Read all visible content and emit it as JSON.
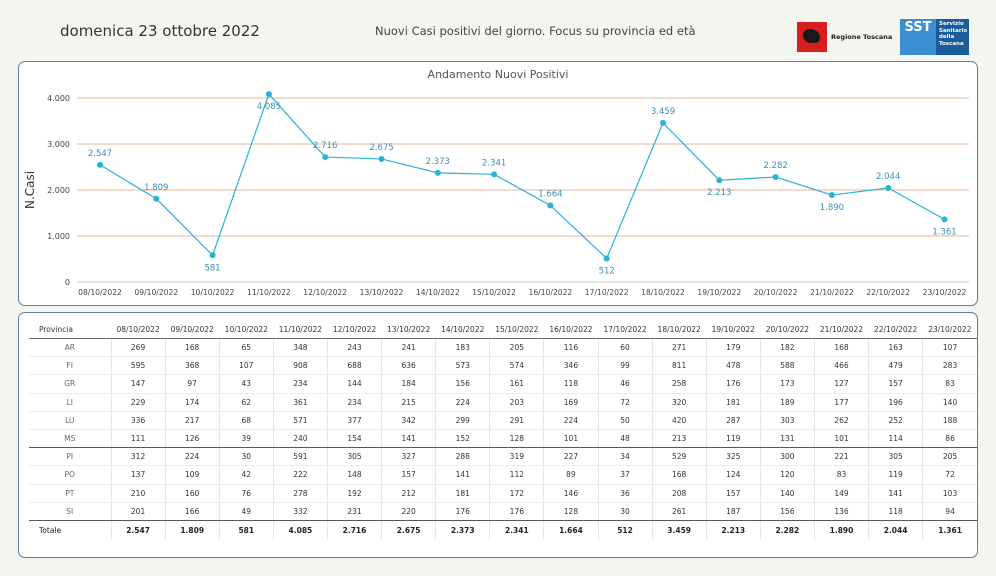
{
  "header": {
    "date": "domenica 23 ottobre 2022",
    "subtitle": "Nuovi Casi positivi del giorno. Focus su provincia ed età",
    "logo_regione": "Regione Toscana",
    "logo_sst_abbr": "SST",
    "logo_sst_lines": [
      "Servizio",
      "Sanitario",
      "della",
      "Toscana"
    ]
  },
  "colors": {
    "line": "#29b2d6",
    "label": "#3a8fb8",
    "grid": "#e6b39c",
    "border": "#5b7f98"
  },
  "chart_data": {
    "type": "line",
    "title": "Andamento Nuovi Positivi",
    "ylabel": "N.Casi",
    "xlabel": "",
    "ylim": [
      0,
      4000
    ],
    "yticks": [
      "0",
      "1.000",
      "2.000",
      "3.000",
      "4.000"
    ],
    "categories": [
      "08/10/2022",
      "09/10/2022",
      "10/10/2022",
      "11/10/2022",
      "12/10/2022",
      "13/10/2022",
      "14/10/2022",
      "15/10/2022",
      "16/10/2022",
      "17/10/2022",
      "18/10/2022",
      "19/10/2022",
      "20/10/2022",
      "21/10/2022",
      "22/10/2022",
      "23/10/2022"
    ],
    "values": [
      2547,
      1809,
      581,
      4085,
      2716,
      2675,
      2373,
      2341,
      1664,
      512,
      3459,
      2213,
      2282,
      1890,
      2044,
      1361
    ],
    "data_labels": [
      "2.547",
      "1.809",
      "581",
      "4.085",
      "2.716",
      "2.675",
      "2.373",
      "2.341",
      "1.664",
      "512",
      "3.459",
      "2.213",
      "2.282",
      "1.890",
      "2.044",
      "1.361"
    ],
    "label_positions": [
      "above",
      "above",
      "below",
      "below",
      "above",
      "above",
      "above",
      "above",
      "above",
      "below",
      "above",
      "below",
      "above",
      "below",
      "above",
      "below"
    ],
    "grid": true
  },
  "table": {
    "header_label": "Provincia",
    "dates": [
      "08/10/2022",
      "09/10/2022",
      "10/10/2022",
      "11/10/2022",
      "12/10/2022",
      "13/10/2022",
      "14/10/2022",
      "15/10/2022",
      "16/10/2022",
      "17/10/2022",
      "18/10/2022",
      "19/10/2022",
      "20/10/2022",
      "21/10/2022",
      "22/10/2022",
      "23/10/2022"
    ],
    "rows": [
      {
        "prov": "AR",
        "values": [
          "269",
          "168",
          "65",
          "348",
          "243",
          "241",
          "183",
          "205",
          "116",
          "60",
          "271",
          "179",
          "182",
          "168",
          "163",
          "107"
        ]
      },
      {
        "prov": "FI",
        "values": [
          "595",
          "368",
          "107",
          "908",
          "688",
          "636",
          "573",
          "574",
          "346",
          "99",
          "811",
          "478",
          "588",
          "466",
          "479",
          "283"
        ]
      },
      {
        "prov": "GR",
        "values": [
          "147",
          "97",
          "43",
          "234",
          "144",
          "184",
          "156",
          "161",
          "118",
          "46",
          "258",
          "176",
          "173",
          "127",
          "157",
          "83"
        ]
      },
      {
        "prov": "LI",
        "values": [
          "229",
          "174",
          "62",
          "361",
          "234",
          "215",
          "224",
          "203",
          "169",
          "72",
          "320",
          "181",
          "189",
          "177",
          "196",
          "140"
        ]
      },
      {
        "prov": "LU",
        "values": [
          "336",
          "217",
          "68",
          "571",
          "377",
          "342",
          "299",
          "291",
          "224",
          "50",
          "420",
          "287",
          "303",
          "262",
          "252",
          "188"
        ]
      },
      {
        "prov": "MS",
        "values": [
          "111",
          "126",
          "39",
          "240",
          "154",
          "141",
          "152",
          "128",
          "101",
          "48",
          "213",
          "119",
          "131",
          "101",
          "114",
          "86"
        ]
      },
      {
        "prov": "PI",
        "values": [
          "312",
          "224",
          "30",
          "591",
          "305",
          "327",
          "288",
          "319",
          "227",
          "34",
          "529",
          "325",
          "300",
          "221",
          "305",
          "205"
        ]
      },
      {
        "prov": "PO",
        "values": [
          "137",
          "109",
          "42",
          "222",
          "148",
          "157",
          "141",
          "112",
          "89",
          "37",
          "168",
          "124",
          "120",
          "83",
          "119",
          "72"
        ]
      },
      {
        "prov": "PT",
        "values": [
          "210",
          "160",
          "76",
          "278",
          "192",
          "212",
          "181",
          "172",
          "146",
          "36",
          "208",
          "157",
          "140",
          "149",
          "141",
          "103"
        ]
      },
      {
        "prov": "SI",
        "values": [
          "201",
          "166",
          "49",
          "332",
          "231",
          "220",
          "176",
          "176",
          "128",
          "30",
          "261",
          "187",
          "156",
          "136",
          "118",
          "94"
        ]
      }
    ],
    "total": {
      "prov": "Totale",
      "values": [
        "2.547",
        "1.809",
        "581",
        "4.085",
        "2.716",
        "2.675",
        "2.373",
        "2.341",
        "1.664",
        "512",
        "3.459",
        "2.213",
        "2.282",
        "1.890",
        "2.044",
        "1.361"
      ]
    }
  }
}
